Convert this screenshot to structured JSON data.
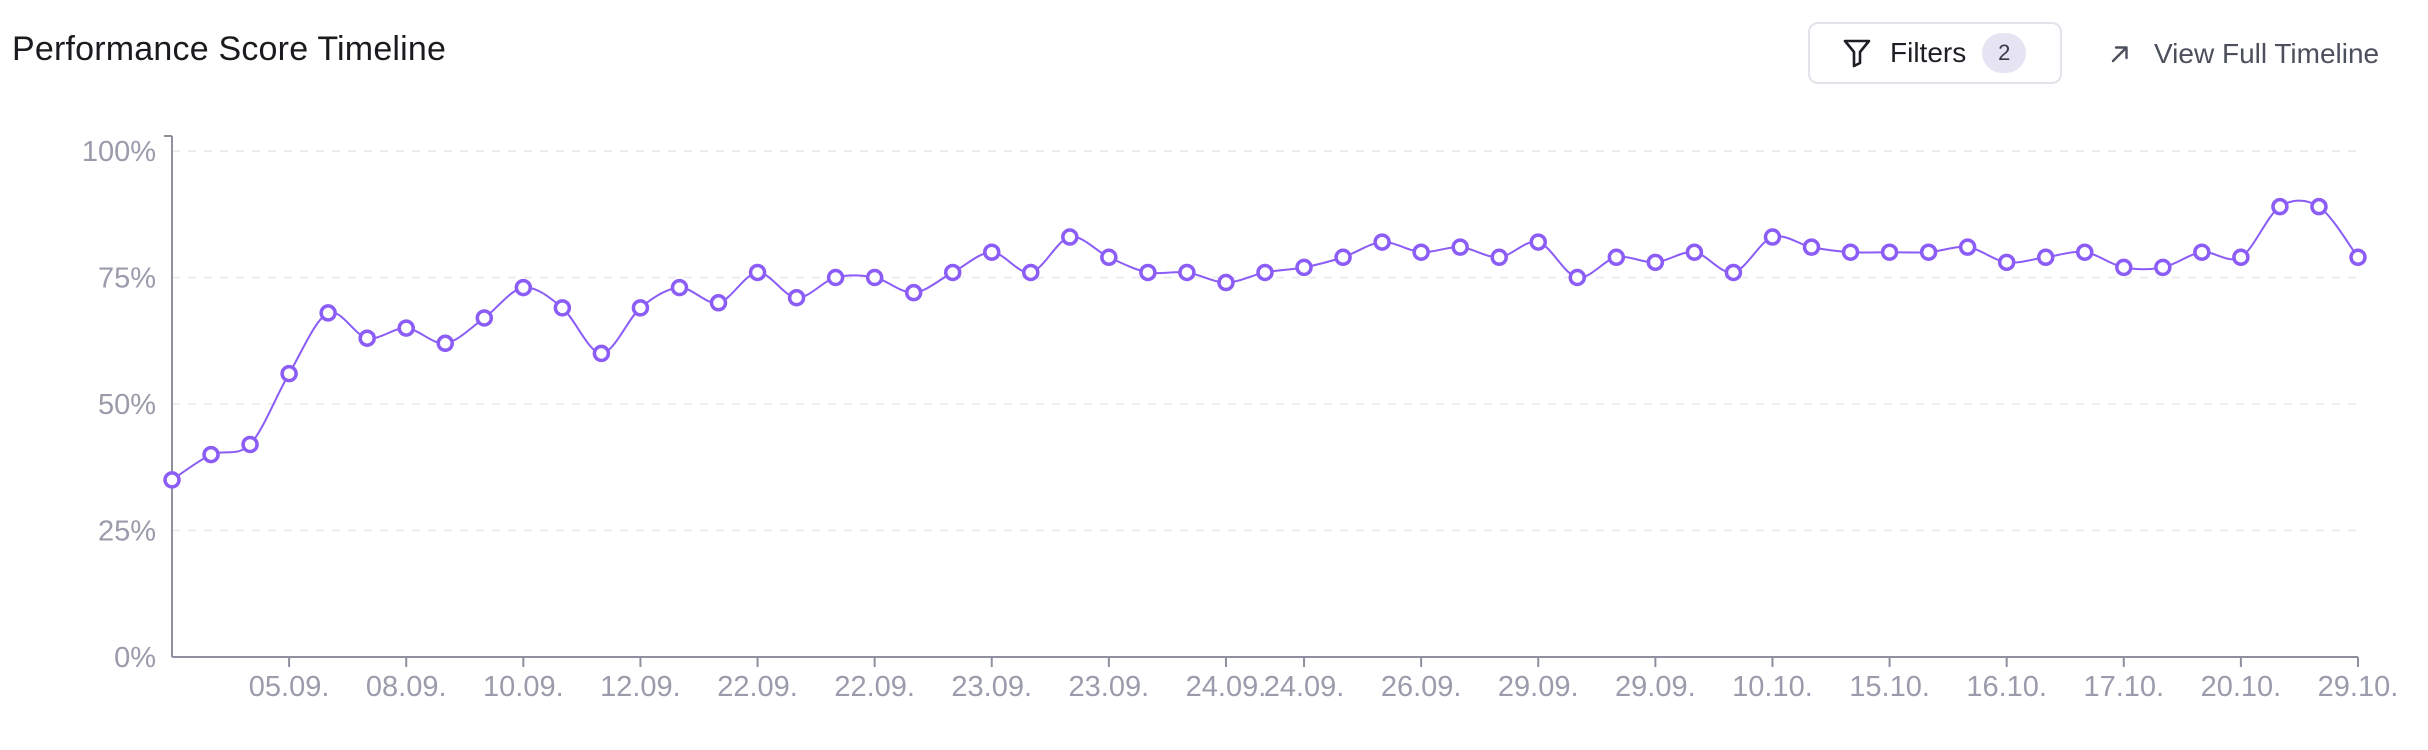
{
  "header": {
    "title": "Performance Score Timeline",
    "filters_label": "Filters",
    "filters_count": "2",
    "filter_icon": "filter-icon",
    "view_label": "View Full Timeline",
    "view_icon": "arrow-up-right-icon"
  },
  "colors": {
    "line": "#8b5cf6",
    "point_fill": "#ffffff",
    "axis": "#8e90a0",
    "grid": "#ececf1",
    "tick_text": "#9a9cab",
    "badge_bg": "#e6e4f3"
  },
  "chart_data": {
    "type": "line",
    "title": "Performance Score Timeline",
    "xlabel": "",
    "ylabel": "",
    "ylim": [
      0,
      100
    ],
    "yticks": [
      "0%",
      "25%",
      "50%",
      "75%",
      "100%"
    ],
    "ytick_values": [
      0,
      25,
      50,
      75,
      100
    ],
    "grid": "horizontal dashed",
    "legend": "none",
    "xtick_labels": [
      "05.09.",
      "08.09.",
      "10.09.",
      "12.09.",
      "22.09.",
      "22.09.",
      "23.09.",
      "23.09.",
      "24.09.",
      "24.09.",
      "26.09.",
      "29.09.",
      "29.09.",
      "10.10.",
      "15.10.",
      "16.10.",
      "17.10.",
      "20.10.",
      "29.10."
    ],
    "series": [
      {
        "values": [
          35,
          40,
          42,
          56,
          68,
          63,
          65,
          62,
          67,
          73,
          69,
          60,
          69,
          73,
          70,
          76,
          71,
          75,
          75,
          72,
          76,
          80,
          76,
          83,
          79,
          76,
          76,
          74,
          76,
          77,
          79,
          82,
          80,
          81,
          79,
          82,
          75,
          79,
          78,
          80,
          76,
          83,
          81,
          80,
          80,
          80,
          81,
          78,
          79,
          80,
          77,
          77,
          80,
          79,
          89,
          89,
          79
        ]
      }
    ]
  }
}
